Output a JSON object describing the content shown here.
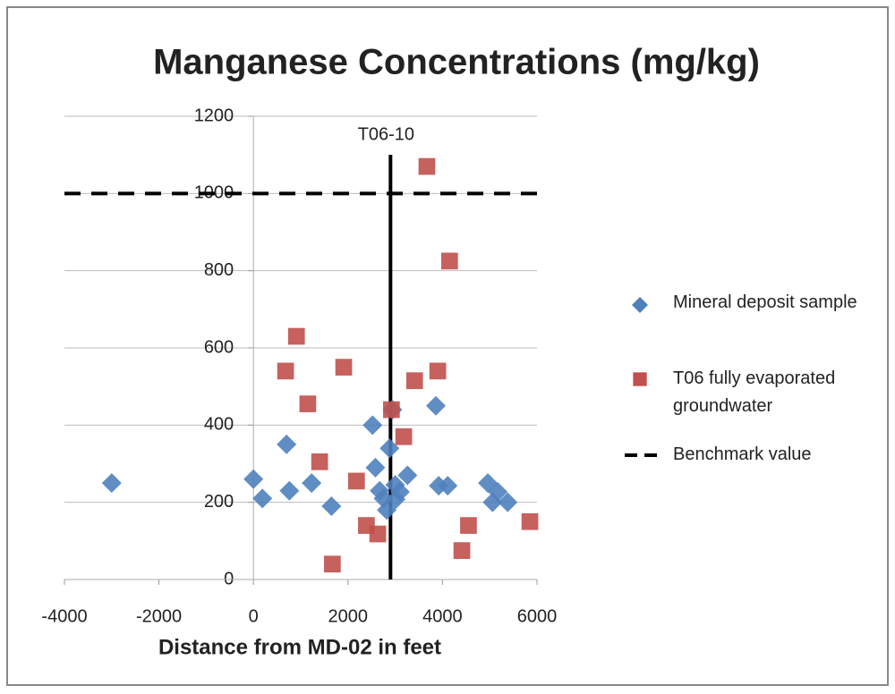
{
  "chart_data": {
    "type": "scatter",
    "title": "Manganese Concentrations (mg/kg)",
    "xlabel": "Distance from MD-02 in feet",
    "xlim": [
      -4000,
      6000
    ],
    "xticks": [
      -4000,
      -2000,
      0,
      2000,
      4000,
      6000
    ],
    "ylim": [
      0,
      1200
    ],
    "yticks": [
      0,
      200,
      400,
      600,
      800,
      1000,
      1200
    ],
    "grid": true,
    "series": [
      {
        "name": "Mineral deposit sample",
        "color": "#4f81bd",
        "marker": "diamond",
        "x": [
          -3000,
          0,
          190,
          700,
          760,
          1230,
          1650,
          2520,
          2580,
          2670,
          2750,
          2820,
          2880,
          2940,
          3000,
          3010,
          3100,
          3260,
          3860,
          3920,
          4110,
          4960,
          5060,
          5170,
          5380
        ],
        "values": [
          250,
          260,
          210,
          350,
          230,
          250,
          190,
          400,
          290,
          230,
          210,
          180,
          340,
          440,
          245,
          208,
          227,
          270,
          450,
          243,
          243,
          250,
          200,
          227,
          200
        ]
      },
      {
        "name": "T06 fully evaporated groundwater",
        "color": "#c0504d",
        "marker": "square",
        "x": [
          680,
          910,
          1150,
          1400,
          1910,
          1670,
          2180,
          2390,
          2630,
          2920,
          3180,
          3410,
          3670,
          3900,
          4150,
          4410,
          4550,
          5850
        ],
        "values": [
          540,
          630,
          455,
          305,
          550,
          40,
          255,
          140,
          118,
          440,
          370,
          515,
          1070,
          540,
          825,
          75,
          140,
          150
        ]
      }
    ],
    "benchmark": {
      "name": "Benchmark value",
      "value": 1000,
      "color": "#000000"
    },
    "vline": {
      "label": "T06-10",
      "x": 2900,
      "ylim": [
        0,
        1100
      ]
    }
  }
}
